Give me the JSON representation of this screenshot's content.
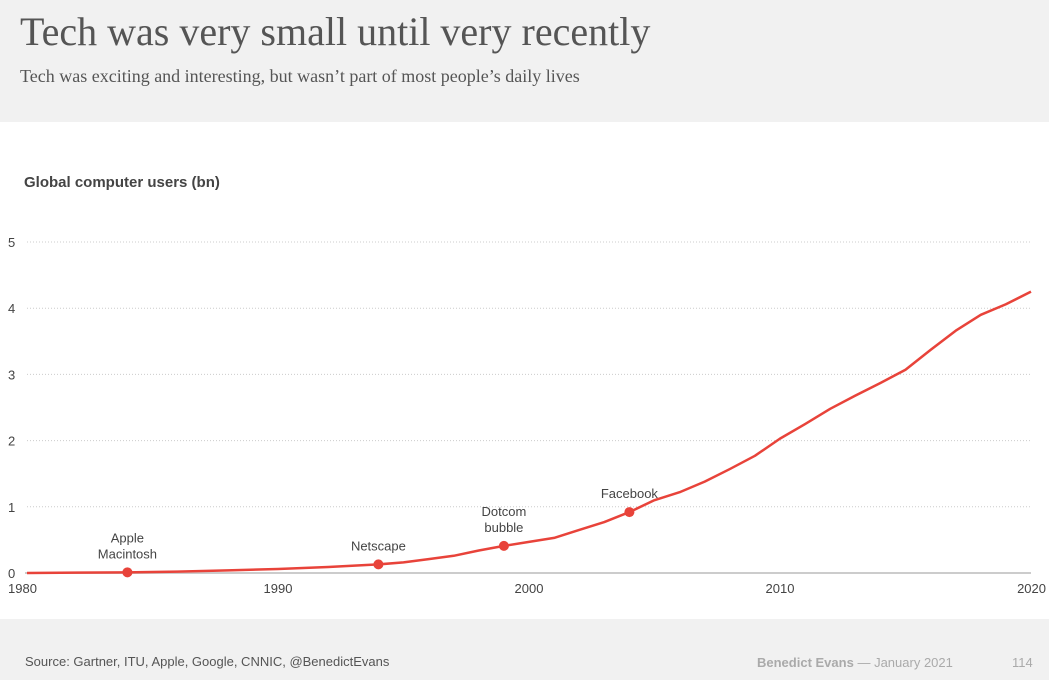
{
  "title": "Tech was very small until very recently",
  "subtitle": "Tech was exciting and interesting, but wasn’t part of most people’s daily lives",
  "footer": {
    "source": "Source: Gartner, ITU, Apple, Google, CNNIC, @BenedictEvans",
    "author": "Benedict Evans",
    "dash": "—",
    "date": "January 2021",
    "page": "114"
  },
  "colors": {
    "line": "#e8433a",
    "grid": "#cccccc",
    "axis": "#cccccc"
  },
  "chart_data": {
    "type": "line",
    "title": "Tech was very small until very recently",
    "ylabel": "Global computer users (bn)",
    "xlabel": "",
    "xlim": [
      1980,
      2020
    ],
    "ylim": [
      0,
      5
    ],
    "xticks": [
      1980,
      1990,
      2000,
      2010,
      2020
    ],
    "yticks": [
      0,
      1,
      2,
      3,
      4,
      5
    ],
    "grid": true,
    "series": [
      {
        "name": "Global computer users (bn)",
        "x": [
          1980,
          1982,
          1984,
          1986,
          1988,
          1990,
          1992,
          1994,
          1995,
          1996,
          1997,
          1998,
          1999,
          2000,
          2001,
          2002,
          2003,
          2004,
          2005,
          2006,
          2007,
          2008,
          2009,
          2010,
          2011,
          2012,
          2013,
          2014,
          2015,
          2016,
          2017,
          2018,
          2019,
          2020
        ],
        "y": [
          0,
          0.005,
          0.01,
          0.02,
          0.04,
          0.06,
          0.09,
          0.13,
          0.16,
          0.21,
          0.26,
          0.34,
          0.41,
          0.47,
          0.53,
          0.65,
          0.77,
          0.92,
          1.1,
          1.22,
          1.38,
          1.57,
          1.77,
          2.03,
          2.25,
          2.48,
          2.68,
          2.87,
          3.07,
          3.37,
          3.66,
          3.9,
          4.06,
          4.25
        ]
      }
    ],
    "annotations": [
      {
        "x": 1984,
        "y": 0.01,
        "lines": [
          "Apple",
          "Macintosh"
        ]
      },
      {
        "x": 1994,
        "y": 0.13,
        "lines": [
          "Netscape"
        ]
      },
      {
        "x": 1999,
        "y": 0.41,
        "lines": [
          "Dotcom",
          "bubble"
        ]
      },
      {
        "x": 2004,
        "y": 0.92,
        "lines": [
          "Facebook"
        ]
      }
    ]
  }
}
